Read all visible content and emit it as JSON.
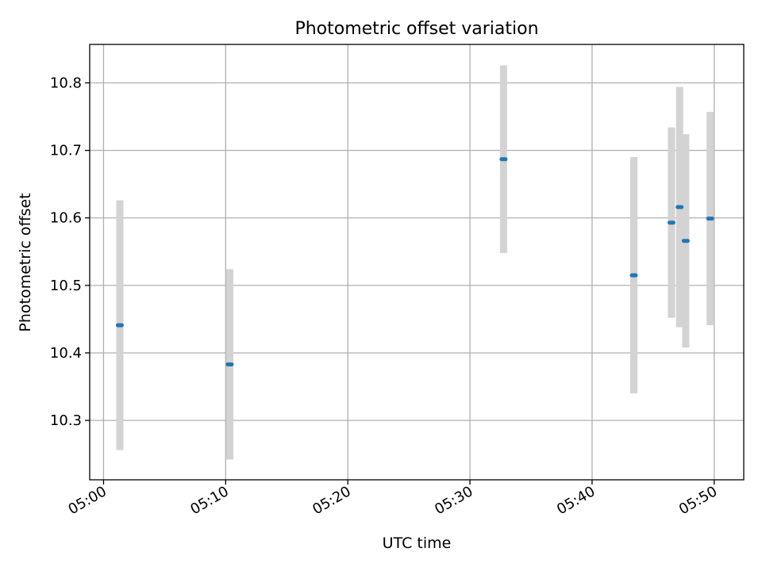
{
  "chart_data": {
    "type": "scatter",
    "title": "Photometric offset variation",
    "xlabel": "UTC time",
    "ylabel": "Photometric offset",
    "x_ticks": [
      "05:00",
      "05:10",
      "05:20",
      "05:30",
      "05:40",
      "05:50"
    ],
    "y_ticks": [
      "10.3",
      "10.4",
      "10.5",
      "10.6",
      "10.7",
      "10.8"
    ],
    "xlim": [
      "04:58:52",
      "05:52:25"
    ],
    "ylim": [
      10.212,
      10.857
    ],
    "grid": true,
    "colors": {
      "marker": "#1f77b4",
      "errorbar": "#d3d3d3"
    },
    "points": [
      {
        "time": "05:01:20",
        "value": 10.441,
        "error": 0.185
      },
      {
        "time": "05:10:20",
        "value": 10.383,
        "error": 0.141
      },
      {
        "time": "05:32:45",
        "value": 10.687,
        "error": 0.139
      },
      {
        "time": "05:43:25",
        "value": 10.515,
        "error": 0.175
      },
      {
        "time": "05:46:30",
        "value": 10.593,
        "error": 0.141
      },
      {
        "time": "05:47:10",
        "value": 10.616,
        "error": 0.178
      },
      {
        "time": "05:47:40",
        "value": 10.566,
        "error": 0.158
      },
      {
        "time": "05:49:40",
        "value": 10.599,
        "error": 0.158
      }
    ]
  }
}
